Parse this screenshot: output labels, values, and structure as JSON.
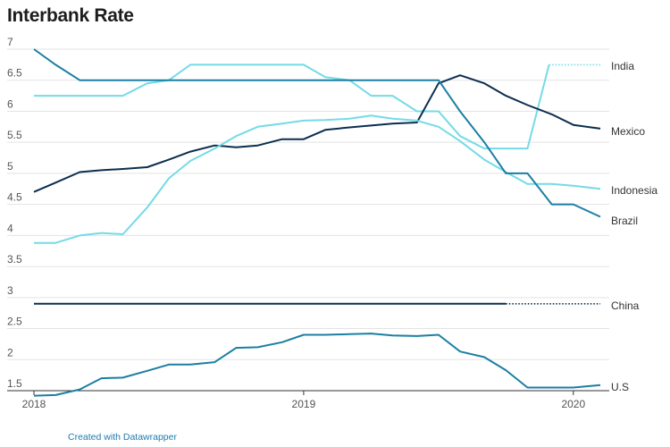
{
  "title": "Interbank Rate",
  "credit": "Created with Datawrapper",
  "chart_data": {
    "type": "line",
    "title": "Interbank Rate",
    "ylim": [
      1.5,
      7
    ],
    "yticks": [
      "1.5",
      "2",
      "2.5",
      "3",
      "3.5",
      "4",
      "4.5",
      "5",
      "5.5",
      "6",
      "6.5",
      "7"
    ],
    "xlim": [
      2018.0,
      2020.1
    ],
    "xticks": [
      {
        "label": "2018",
        "value": 2018.0
      },
      {
        "label": "2019",
        "value": 2019.0
      },
      {
        "label": "2020",
        "value": 2020.0
      }
    ],
    "grid": true,
    "series": [
      {
        "name": "India",
        "color": "#74dbe6",
        "solid_until": 2019.91,
        "points": [
          [
            2018.0,
            6.25
          ],
          [
            2018.33,
            6.25
          ],
          [
            2018.42,
            6.45
          ],
          [
            2018.5,
            6.5
          ],
          [
            2018.58,
            6.75
          ],
          [
            2018.67,
            6.75
          ],
          [
            2019.0,
            6.75
          ],
          [
            2019.08,
            6.55
          ],
          [
            2019.17,
            6.5
          ],
          [
            2019.25,
            6.25
          ],
          [
            2019.33,
            6.25
          ],
          [
            2019.42,
            6.0
          ],
          [
            2019.5,
            6.0
          ],
          [
            2019.58,
            5.6
          ],
          [
            2019.67,
            5.4
          ],
          [
            2019.75,
            5.4
          ],
          [
            2019.83,
            5.4
          ],
          [
            2019.91,
            6.75
          ],
          [
            2020.1,
            6.75
          ]
        ]
      },
      {
        "name": "Mexico",
        "color": "#0b2e4e",
        "solid_until": 2020.1,
        "points": [
          [
            2018.0,
            4.7
          ],
          [
            2018.08,
            4.85
          ],
          [
            2018.17,
            5.02
          ],
          [
            2018.25,
            5.05
          ],
          [
            2018.33,
            5.07
          ],
          [
            2018.42,
            5.1
          ],
          [
            2018.5,
            5.22
          ],
          [
            2018.58,
            5.35
          ],
          [
            2018.67,
            5.45
          ],
          [
            2018.75,
            5.42
          ],
          [
            2018.83,
            5.45
          ],
          [
            2018.92,
            5.55
          ],
          [
            2019.0,
            5.55
          ],
          [
            2019.08,
            5.7
          ],
          [
            2019.17,
            5.74
          ],
          [
            2019.25,
            5.77
          ],
          [
            2019.33,
            5.8
          ],
          [
            2019.42,
            5.82
          ],
          [
            2019.5,
            6.45
          ],
          [
            2019.58,
            6.58
          ],
          [
            2019.67,
            6.45
          ],
          [
            2019.75,
            6.25
          ],
          [
            2019.83,
            6.1
          ],
          [
            2019.92,
            5.95
          ],
          [
            2020.0,
            5.78
          ],
          [
            2020.1,
            5.72
          ]
        ]
      },
      {
        "name": "Indonesia",
        "color": "#74dbe6",
        "solid_until": 2020.1,
        "points": [
          [
            2018.0,
            3.88
          ],
          [
            2018.08,
            3.88
          ],
          [
            2018.17,
            4.0
          ],
          [
            2018.25,
            4.04
          ],
          [
            2018.33,
            4.02
          ],
          [
            2018.42,
            4.45
          ],
          [
            2018.5,
            4.92
          ],
          [
            2018.58,
            5.2
          ],
          [
            2018.67,
            5.4
          ],
          [
            2018.75,
            5.6
          ],
          [
            2018.83,
            5.75
          ],
          [
            2018.92,
            5.8
          ],
          [
            2019.0,
            5.85
          ],
          [
            2019.08,
            5.86
          ],
          [
            2019.17,
            5.88
          ],
          [
            2019.25,
            5.93
          ],
          [
            2019.33,
            5.88
          ],
          [
            2019.42,
            5.85
          ],
          [
            2019.5,
            5.75
          ],
          [
            2019.58,
            5.52
          ],
          [
            2019.67,
            5.22
          ],
          [
            2019.75,
            5.02
          ],
          [
            2019.83,
            4.83
          ],
          [
            2019.92,
            4.83
          ],
          [
            2020.0,
            4.8
          ],
          [
            2020.1,
            4.75
          ]
        ]
      },
      {
        "name": "Brazil",
        "color": "#1b7fa3",
        "solid_until": 2020.1,
        "points": [
          [
            2018.0,
            7.0
          ],
          [
            2018.08,
            6.75
          ],
          [
            2018.17,
            6.5
          ],
          [
            2019.5,
            6.5
          ],
          [
            2019.58,
            6.0
          ],
          [
            2019.67,
            5.5
          ],
          [
            2019.75,
            5.0
          ],
          [
            2019.83,
            5.0
          ],
          [
            2019.92,
            4.5
          ],
          [
            2020.0,
            4.5
          ],
          [
            2020.1,
            4.3
          ]
        ]
      },
      {
        "name": "China",
        "color": "#0b2e4e",
        "solid_until": 2019.75,
        "points": [
          [
            2018.0,
            2.9
          ],
          [
            2020.1,
            2.9
          ]
        ]
      },
      {
        "name": "U.S",
        "color": "#1b7fa3",
        "solid_until": 2020.1,
        "points": [
          [
            2018.0,
            1.42
          ],
          [
            2018.08,
            1.43
          ],
          [
            2018.17,
            1.52
          ],
          [
            2018.25,
            1.7
          ],
          [
            2018.33,
            1.71
          ],
          [
            2018.42,
            1.82
          ],
          [
            2018.5,
            1.92
          ],
          [
            2018.58,
            1.92
          ],
          [
            2018.67,
            1.96
          ],
          [
            2018.75,
            2.19
          ],
          [
            2018.83,
            2.2
          ],
          [
            2018.92,
            2.28
          ],
          [
            2019.0,
            2.4
          ],
          [
            2019.08,
            2.4
          ],
          [
            2019.17,
            2.41
          ],
          [
            2019.25,
            2.42
          ],
          [
            2019.33,
            2.39
          ],
          [
            2019.42,
            2.38
          ],
          [
            2019.5,
            2.4
          ],
          [
            2019.58,
            2.13
          ],
          [
            2019.67,
            2.04
          ],
          [
            2019.75,
            1.83
          ],
          [
            2019.83,
            1.55
          ],
          [
            2019.92,
            1.55
          ],
          [
            2020.0,
            1.55
          ],
          [
            2020.1,
            1.59
          ]
        ]
      }
    ]
  }
}
